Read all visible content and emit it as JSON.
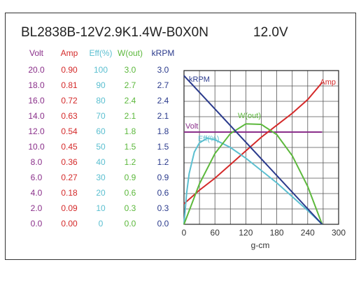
{
  "chart_data": {
    "type": "line",
    "title": "BL2838B-12V2.9K1.4W-B0X0N",
    "subtitle": "12.0V",
    "xlabel": "g-cm",
    "xlim": [
      0,
      300
    ],
    "xticks": [
      0,
      60,
      120,
      180,
      240,
      300
    ],
    "grid": true,
    "series": [
      {
        "name": "Volt",
        "color": "#8a2f8a",
        "ylim": [
          0,
          20
        ],
        "yticks": [
          {
            "value": 0,
            "label": "0.0"
          },
          {
            "value": 2,
            "label": "2.0"
          },
          {
            "value": 4,
            "label": "4.0"
          },
          {
            "value": 6,
            "label": "6.0"
          },
          {
            "value": 8,
            "label": "8.0"
          },
          {
            "value": 10,
            "label": "10.0"
          },
          {
            "value": 12,
            "label": "12.0"
          },
          {
            "value": 14,
            "label": "14.0"
          },
          {
            "value": 16,
            "label": "16.0"
          },
          {
            "value": 18,
            "label": "18.0"
          },
          {
            "value": 20,
            "label": "20.0"
          }
        ],
        "x": [
          0,
          268
        ],
        "values": [
          12,
          12
        ]
      },
      {
        "name": "Amp",
        "color": "#d42a2a",
        "ylim": [
          0,
          0.9
        ],
        "yticks": [
          {
            "value": 0,
            "label": "0.00"
          },
          {
            "value": 0.09,
            "label": "0.09"
          },
          {
            "value": 0.18,
            "label": "0.18"
          },
          {
            "value": 0.27,
            "label": "0.27"
          },
          {
            "value": 0.36,
            "label": "0.36"
          },
          {
            "value": 0.45,
            "label": "0.45"
          },
          {
            "value": 0.54,
            "label": "0.54"
          },
          {
            "value": 0.63,
            "label": "0.63"
          },
          {
            "value": 0.72,
            "label": "0.72"
          },
          {
            "value": 0.81,
            "label": "0.81"
          },
          {
            "value": 0.9,
            "label": "0.90"
          }
        ],
        "x": [
          0,
          30,
          60,
          90,
          120,
          150,
          180,
          210,
          240,
          268
        ],
        "values": [
          0.12,
          0.2,
          0.27,
          0.35,
          0.43,
          0.51,
          0.58,
          0.65,
          0.73,
          0.83
        ]
      },
      {
        "name": "Eff(%)",
        "color": "#5bbfd0",
        "ylim": [
          0,
          100
        ],
        "yticks": [
          0,
          10,
          20,
          30,
          40,
          50,
          60,
          70,
          80,
          90,
          100
        ],
        "x": [
          0,
          5,
          10,
          20,
          30,
          45,
          60,
          90,
          120,
          150,
          180,
          210,
          240,
          268
        ],
        "values": [
          0,
          20,
          33,
          47,
          53,
          56,
          55,
          50,
          43,
          35,
          27,
          18,
          9,
          0
        ]
      },
      {
        "name": "W(out)",
        "color": "#5cb83c",
        "ylim": [
          0,
          3
        ],
        "yticks": [
          {
            "value": 0,
            "label": "0.0"
          },
          {
            "value": 0.3,
            "label": "0.3"
          },
          {
            "value": 0.6,
            "label": "0.6"
          },
          {
            "value": 0.9,
            "label": "0.9"
          },
          {
            "value": 1.2,
            "label": "1.2"
          },
          {
            "value": 1.5,
            "label": "1.5"
          },
          {
            "value": 1.8,
            "label": "1.8"
          },
          {
            "value": 2.1,
            "label": "2.1"
          },
          {
            "value": 2.4,
            "label": "2.4"
          },
          {
            "value": 2.7,
            "label": "2.7"
          },
          {
            "value": 3,
            "label": "3.0"
          }
        ],
        "x": [
          0,
          30,
          60,
          90,
          120,
          150,
          180,
          210,
          240,
          268
        ],
        "values": [
          0,
          0.79,
          1.38,
          1.77,
          1.96,
          1.95,
          1.75,
          1.34,
          0.74,
          0
        ]
      },
      {
        "name": "kRPM",
        "color": "#2a3a8c",
        "ylim": [
          0,
          3
        ],
        "yticks": [
          {
            "value": 0,
            "label": "0.0"
          },
          {
            "value": 0.3,
            "label": "0.3"
          },
          {
            "value": 0.6,
            "label": "0.6"
          },
          {
            "value": 0.9,
            "label": "0.9"
          },
          {
            "value": 1.2,
            "label": "1.2"
          },
          {
            "value": 1.5,
            "label": "1.5"
          },
          {
            "value": 1.8,
            "label": "1.8"
          },
          {
            "value": 2.1,
            "label": "2.1"
          },
          {
            "value": 2.4,
            "label": "2.4"
          },
          {
            "value": 2.7,
            "label": "2.7"
          },
          {
            "value": 3,
            "label": "3.0"
          }
        ],
        "x": [
          0,
          268
        ],
        "values": [
          2.9,
          0
        ]
      }
    ]
  }
}
